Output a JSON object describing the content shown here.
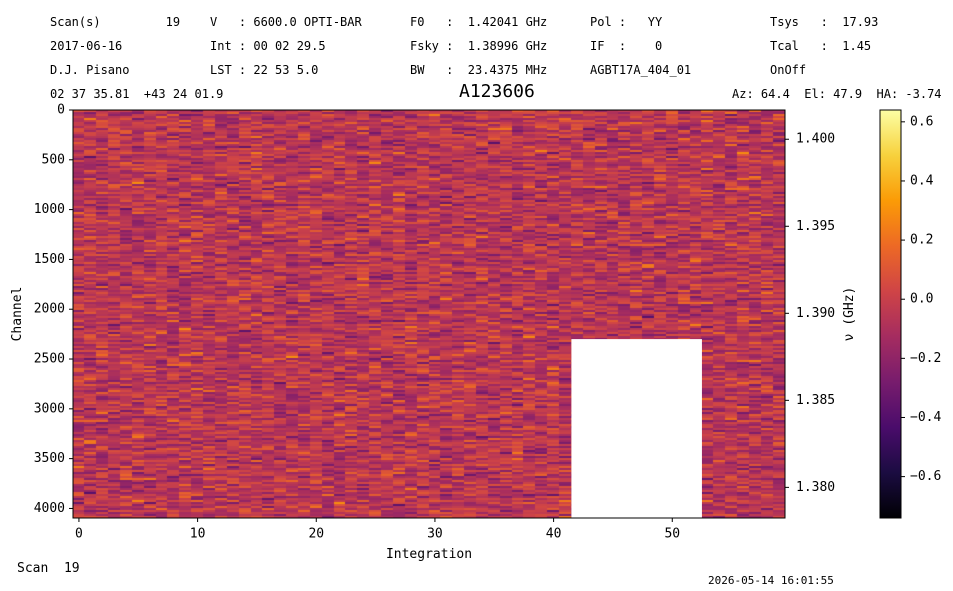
{
  "header": {
    "col1": [
      "Scan(s)         19",
      "2017-06-16",
      "D.J. Pisano",
      "02 37 35.81  +43 24 01.9"
    ],
    "col2": [
      "V   : 6600.0 OPTI-BAR",
      "Int : 00 02 29.5",
      "LST : 22 53 5.0"
    ],
    "col3": [
      "F0   :  1.42041 GHz",
      "Fsky :  1.38996 GHz",
      "BW   :  23.4375 MHz"
    ],
    "col4": [
      "Pol :   YY",
      "IF  :    0",
      "AGBT17A_404_01"
    ],
    "col5": [
      "Tsys   :  17.93",
      "Tcal   :  1.45",
      "OnOff"
    ],
    "azel": "Az: 64.4  El: 47.9  HA: -3.74"
  },
  "footer": {
    "scan_label": "Scan  19",
    "timestamp": "2026-05-14 16:01:55"
  },
  "chart_data": {
    "type": "heatmap",
    "title": "A123606",
    "xlabel": "Integration",
    "ylabel": "Channel",
    "y2label": "ν (GHz)",
    "colormap": "inferno",
    "x_range": [
      -0.5,
      59.5
    ],
    "y_range": [
      4096,
      0
    ],
    "x_ticks": [
      0,
      10,
      20,
      30,
      40,
      50
    ],
    "y_ticks": [
      0,
      500,
      1000,
      1500,
      2000,
      2500,
      3000,
      3500,
      4000
    ],
    "y2_ticks": [
      "1.400",
      "1.395",
      "1.390",
      "1.385",
      "1.380"
    ],
    "y2_tick_values": [
      1.4,
      1.395,
      1.39,
      1.385,
      1.38
    ],
    "y2_range": [
      1.40168,
      1.37824
    ],
    "colorbar_range": [
      -0.74,
      0.64
    ],
    "colorbar_ticks": [
      "0.6",
      "0.4",
      "0.2",
      "0.0",
      "−0.2",
      "−0.4",
      "−0.6"
    ],
    "colorbar_tick_values": [
      0.6,
      0.4,
      0.2,
      0.0,
      -0.2,
      -0.4,
      -0.6
    ],
    "masked_region": {
      "x": [
        41.5,
        52.5
      ],
      "y": [
        2300,
        4096
      ]
    },
    "n_integrations": 60,
    "n_channels": 4096,
    "value_distribution": {
      "mean": -0.05,
      "std": 0.18
    }
  },
  "colors": {
    "cmap_stops": [
      "#000004",
      "#1b0c41",
      "#4a0c6b",
      "#781c6d",
      "#a52c60",
      "#cf4446",
      "#ed6925",
      "#fb9b06",
      "#f7d13d",
      "#fcffa4"
    ]
  }
}
